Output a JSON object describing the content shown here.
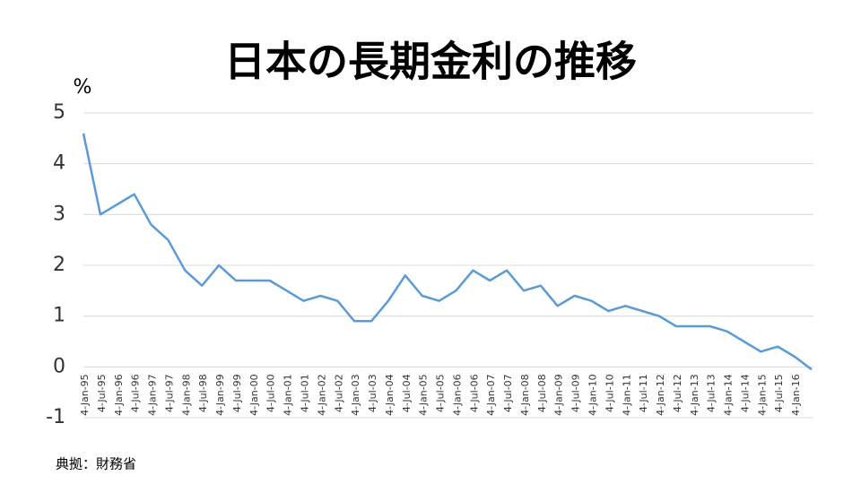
{
  "chart_data": {
    "type": "line",
    "title": "日本の長期金利の推移",
    "y_label": "%",
    "source": "典拠：財務省",
    "categories": [
      "4-Jan-95",
      "4-Jul-95",
      "4-Jan-96",
      "4-Jul-96",
      "4-Jan-97",
      "4-Jul-97",
      "4-Jan-98",
      "4-Jul-98",
      "4-Jan-99",
      "4-Jul-99",
      "4-Jan-00",
      "4-Jul-00",
      "4-Jan-01",
      "4-Jul-01",
      "4-Jan-02",
      "4-Jul-02",
      "4-Jan-03",
      "4-Jul-03",
      "4-Jan-04",
      "4-Jul-04",
      "4-Jan-05",
      "4-Jul-05",
      "4-Jan-06",
      "4-Jul-06",
      "4-Jan-07",
      "4-Jul-07",
      "4-Jan-08",
      "4-Jul-08",
      "4-Jan-09",
      "4-Jul-09",
      "4-Jan-10",
      "4-Jul-10",
      "4-Jan-11",
      "4-Jul-11",
      "4-Jan-12",
      "4-Jul-12",
      "4-Jan-13",
      "4-Jul-13",
      "4-Jan-14",
      "4-Jul-14",
      "4-Jan-15",
      "4-Jul-15",
      "4-Jan-16",
      null
    ],
    "series": [
      {
        "name": "長期金利",
        "color": "#5b9bd5",
        "values": [
          4.6,
          3.0,
          3.2,
          3.4,
          2.8,
          2.5,
          1.9,
          1.6,
          2.0,
          1.7,
          1.7,
          1.7,
          1.5,
          1.3,
          1.4,
          1.3,
          0.9,
          0.9,
          1.3,
          1.8,
          1.4,
          1.3,
          1.5,
          1.9,
          1.7,
          1.9,
          1.5,
          1.6,
          1.2,
          1.4,
          1.3,
          1.1,
          1.2,
          1.1,
          1.0,
          0.8,
          0.8,
          0.8,
          0.7,
          0.5,
          0.3,
          0.4,
          0.2,
          -0.05
        ]
      }
    ],
    "ylim": [
      -1,
      5
    ],
    "yticks": [
      -1,
      0,
      1,
      2,
      3,
      4,
      5
    ],
    "grid": true
  }
}
